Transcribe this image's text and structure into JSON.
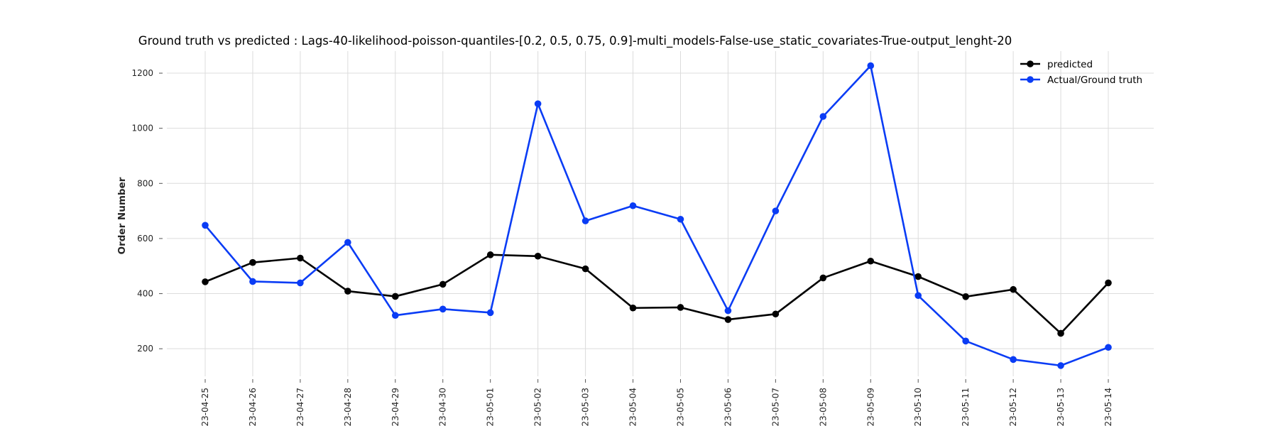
{
  "chart_data": {
    "type": "line",
    "title": "Ground truth vs predicted : Lags-40-likelihood-poisson-quantiles-[0.2, 0.5, 0.75, 0.9]-multi_models-False-use_static_covariates-True-output_lenght-20",
    "xlabel": "",
    "ylabel": "Order Number",
    "x_tick_labels": [
      "2023-04-25",
      "2023-04-26",
      "2023-04-27",
      "2023-04-28",
      "2023-04-29",
      "2023-04-30",
      "2023-05-01",
      "2023-05-02",
      "2023-05-03",
      "2023-05-04",
      "2023-05-05",
      "2023-05-06",
      "2023-05-07",
      "2023-05-08",
      "2023-05-09",
      "2023-05-10",
      "2023-05-11",
      "2023-05-12",
      "2023-05-13",
      "2023-05-14"
    ],
    "y_ticks": [
      200,
      400,
      600,
      800,
      1000,
      1200
    ],
    "ylim": [
      100,
      1280
    ],
    "grid": true,
    "legend_position": "top-right",
    "series": [
      {
        "name": "predicted",
        "color": "#000000",
        "values": [
          443,
          513,
          529,
          409,
          390,
          434,
          541,
          536,
          490,
          348,
          350,
          306,
          326,
          457,
          518,
          462,
          389,
          415,
          256,
          439
        ]
      },
      {
        "name": "Actual/Ground truth",
        "color": "#0a3cf5",
        "values": [
          648,
          444,
          439,
          586,
          321,
          344,
          331,
          1089,
          664,
          719,
          670,
          338,
          700,
          1043,
          1227,
          393,
          228,
          161,
          139,
          205
        ]
      }
    ]
  }
}
